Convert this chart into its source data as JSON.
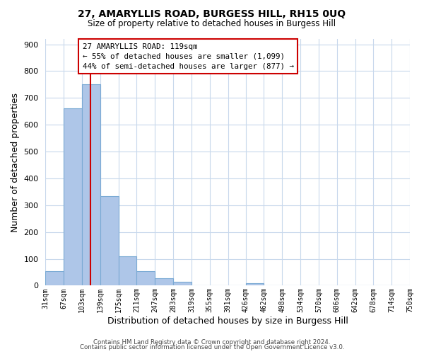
{
  "title": "27, AMARYLLIS ROAD, BURGESS HILL, RH15 0UQ",
  "subtitle": "Size of property relative to detached houses in Burgess Hill",
  "xlabel": "Distribution of detached houses by size in Burgess Hill",
  "ylabel": "Number of detached properties",
  "bar_edges": [
    31,
    67,
    103,
    139,
    175,
    211,
    247,
    283,
    319,
    355,
    391,
    426,
    462,
    498,
    534,
    570,
    606,
    642,
    678,
    714,
    750
  ],
  "bar_heights": [
    55,
    660,
    750,
    335,
    110,
    53,
    27,
    15,
    0,
    0,
    0,
    8,
    0,
    0,
    0,
    0,
    0,
    0,
    0,
    0
  ],
  "bar_color": "#aec6e8",
  "bar_edge_color": "#7aaad4",
  "property_line_x": 119,
  "property_line_color": "#cc0000",
  "annotation_line1": "27 AMARYLLIS ROAD: 119sqm",
  "annotation_line2": "← 55% of detached houses are smaller (1,099)",
  "annotation_line3": "44% of semi-detached houses are larger (877) →",
  "annotation_box_color": "#ffffff",
  "annotation_border_color": "#cc0000",
  "ylim": [
    0,
    920
  ],
  "yticks": [
    0,
    100,
    200,
    300,
    400,
    500,
    600,
    700,
    800,
    900
  ],
  "footer_line1": "Contains HM Land Registry data © Crown copyright and database right 2024.",
  "footer_line2": "Contains public sector information licensed under the Open Government Licence v3.0.",
  "background_color": "#ffffff",
  "grid_color": "#c8d8ec",
  "tick_labels": [
    "31sqm",
    "67sqm",
    "103sqm",
    "139sqm",
    "175sqm",
    "211sqm",
    "247sqm",
    "283sqm",
    "319sqm",
    "355sqm",
    "391sqm",
    "426sqm",
    "462sqm",
    "498sqm",
    "534sqm",
    "570sqm",
    "606sqm",
    "642sqm",
    "678sqm",
    "714sqm",
    "750sqm"
  ]
}
